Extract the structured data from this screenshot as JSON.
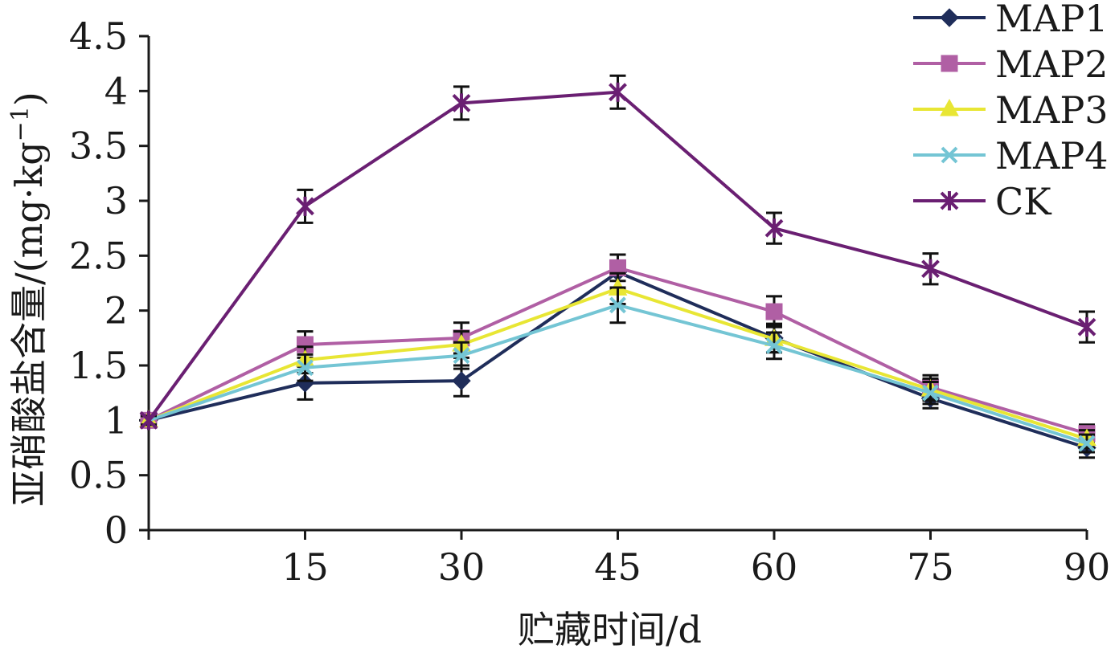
{
  "chart_data": {
    "type": "line",
    "title": "",
    "xlabel": "贮藏时间/d",
    "ylabel": "亚硝酸盐含量/(mg·kg⁻¹)",
    "ylabel_main": "亚硝酸盐含量/(mg·kg",
    "ylabel_sup": "−1",
    "ylabel_close": ")",
    "x": [
      0,
      15,
      30,
      45,
      60,
      75,
      90
    ],
    "x_tick_labels": [
      "15",
      "30",
      "45",
      "60",
      "75",
      "90"
    ],
    "y_tick_labels": [
      "0",
      "0.5",
      "1",
      "1.5",
      "2",
      "2.5",
      "3",
      "3.5",
      "4",
      "4.5"
    ],
    "ylim": [
      0,
      4.5
    ],
    "xlim": [
      0,
      90
    ],
    "grid": false,
    "legend_position": "top-right",
    "series": [
      {
        "name": "MAP1",
        "color": "#1f2d5a",
        "marker": "diamond",
        "values": [
          1.0,
          1.34,
          1.36,
          2.35,
          1.75,
          1.2,
          0.75
        ],
        "errors": [
          0.04,
          0.15,
          0.14,
          0.16,
          0.13,
          0.09,
          0.09
        ]
      },
      {
        "name": "MAP2",
        "color": "#b05fa4",
        "marker": "square",
        "values": [
          1.0,
          1.69,
          1.75,
          2.39,
          1.99,
          1.3,
          0.88
        ],
        "errors": [
          0.04,
          0.12,
          0.14,
          0.12,
          0.14,
          0.11,
          0.08
        ]
      },
      {
        "name": "MAP3",
        "color": "#e8e634",
        "marker": "triangle",
        "values": [
          1.0,
          1.55,
          1.69,
          2.2,
          1.74,
          1.28,
          0.83
        ],
        "errors": [
          0.04,
          0.12,
          0.12,
          0.14,
          0.12,
          0.1,
          0.08
        ]
      },
      {
        "name": "MAP4",
        "color": "#74c5d4",
        "marker": "x",
        "values": [
          1.0,
          1.48,
          1.59,
          2.05,
          1.68,
          1.25,
          0.79
        ],
        "errors": [
          0.04,
          0.12,
          0.12,
          0.16,
          0.12,
          0.1,
          0.08
        ]
      },
      {
        "name": "CK",
        "color": "#6a1f72",
        "marker": "star",
        "values": [
          1.0,
          2.95,
          3.89,
          3.99,
          2.75,
          2.38,
          1.85
        ],
        "errors": [
          0.04,
          0.15,
          0.15,
          0.15,
          0.14,
          0.14,
          0.14
        ]
      }
    ]
  }
}
